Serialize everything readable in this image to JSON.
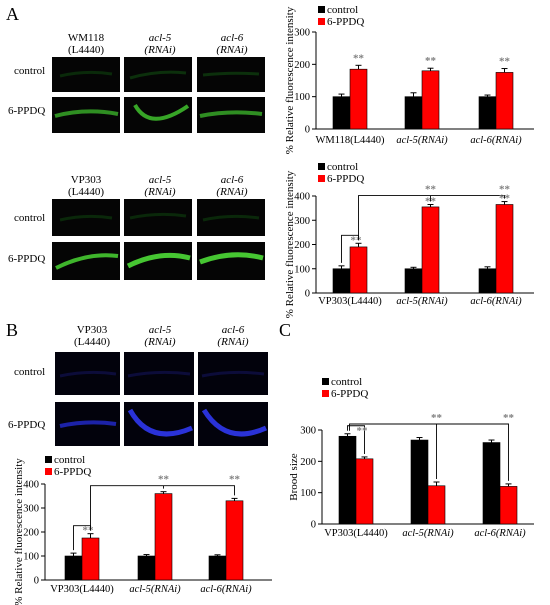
{
  "panels": {
    "A": {
      "letter": "A",
      "block1": {
        "col_labels": [
          [
            "WM118",
            "(L4440)"
          ],
          [
            "acl-5",
            "(RNAi)"
          ],
          [
            "acl-6",
            "(RNAi)"
          ]
        ],
        "row_labels": [
          "control",
          "6-PPDQ"
        ]
      },
      "block2": {
        "col_labels": [
          [
            "VP303",
            "(L4440)"
          ],
          [
            "acl-5",
            "(RNAi)"
          ],
          [
            "acl-6",
            "(RNAi)"
          ]
        ],
        "row_labels": [
          "control",
          "6-PPDQ"
        ]
      }
    },
    "B": {
      "letter": "B",
      "col_labels": [
        [
          "VP303",
          "(L4440)"
        ],
        [
          "acl-5",
          "(RNAi)"
        ],
        [
          "acl-6",
          "(RNAi)"
        ]
      ],
      "row_labels": [
        "control",
        "6-PPDQ"
      ]
    },
    "C": {
      "letter": "C"
    }
  },
  "colors": {
    "control": "#000000",
    "treated": "#ff0000",
    "sig": "#7f7f7f",
    "green": "#3dbb2b",
    "blue": "#2a32d8"
  },
  "chart_data": [
    {
      "id": "A1",
      "type": "bar",
      "categories": [
        "WM118(L4440)",
        "acl-5(RNAi)",
        "acl-6(RNAi)"
      ],
      "series": [
        {
          "name": "control",
          "values": [
            100,
            100,
            100
          ],
          "errors": [
            8,
            12,
            5
          ]
        },
        {
          "name": "6-PPDQ",
          "values": [
            185,
            180,
            175
          ],
          "errors": [
            12,
            8,
            12
          ]
        }
      ],
      "ylabel": "% Relative fluorescence intensity",
      "ylim": [
        0,
        300
      ],
      "yticks": [
        0,
        100,
        200,
        300
      ],
      "annotations": [
        "**",
        "**",
        "**"
      ]
    },
    {
      "id": "A2",
      "type": "bar",
      "categories": [
        "VP303(L4440)",
        "acl-5(RNAi)",
        "acl-6(RNAi)"
      ],
      "series": [
        {
          "name": "control",
          "values": [
            100,
            100,
            100
          ],
          "errors": [
            12,
            6,
            8
          ]
        },
        {
          "name": "6-PPDQ",
          "values": [
            190,
            355,
            365
          ],
          "errors": [
            15,
            10,
            12
          ]
        }
      ],
      "ylabel": "% Relative fluorescence intensity",
      "ylim": [
        0,
        400
      ],
      "yticks": [
        0,
        100,
        200,
        300,
        400
      ],
      "annotations": [
        "**",
        "**",
        "**",
        "**",
        "**"
      ]
    },
    {
      "id": "B",
      "type": "bar",
      "categories": [
        "VP303(L4440)",
        "acl-5(RNAi)",
        "acl-6(RNAi)"
      ],
      "series": [
        {
          "name": "control",
          "values": [
            100,
            100,
            100
          ],
          "errors": [
            12,
            6,
            5
          ]
        },
        {
          "name": "6-PPDQ",
          "values": [
            175,
            360,
            330
          ],
          "errors": [
            18,
            8,
            10
          ]
        }
      ],
      "ylabel": "% Relative fluorescence intensity",
      "ylim": [
        0,
        400
      ],
      "yticks": [
        0,
        100,
        200,
        300,
        400
      ],
      "annotations": [
        "**",
        "**",
        "**"
      ]
    },
    {
      "id": "C",
      "type": "bar",
      "categories": [
        "VP303(L4440)",
        "acl-5(RNAi)",
        "acl-6(RNAi)"
      ],
      "series": [
        {
          "name": "control",
          "values": [
            280,
            268,
            260
          ],
          "errors": [
            8,
            8,
            8
          ]
        },
        {
          "name": "6-PPDQ",
          "values": [
            208,
            122,
            120
          ],
          "errors": [
            6,
            12,
            8
          ]
        }
      ],
      "ylabel": "Brood size",
      "ylim": [
        0,
        300
      ],
      "yticks": [
        0,
        100,
        200,
        300
      ],
      "annotations": [
        "**",
        "**",
        "**"
      ]
    }
  ]
}
